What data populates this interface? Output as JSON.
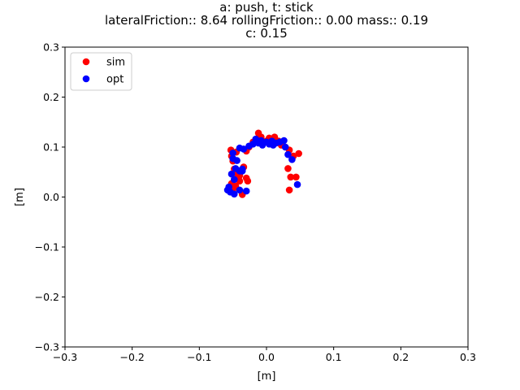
{
  "chart_data": {
    "type": "scatter",
    "title_lines": [
      "a: push, t: stick",
      "lateralFriction:: 8.64 rollingFriction:: 0.00 mass:: 0.19",
      "c: 0.15"
    ],
    "xlabel": "[m]",
    "ylabel": "[m]",
    "xlim": [
      -0.3,
      0.3
    ],
    "ylim": [
      -0.3,
      0.3
    ],
    "xticks": [
      "−0.3",
      "−0.2",
      "−0.1",
      "0.0",
      "0.1",
      "0.2",
      "0.3"
    ],
    "yticks": [
      "−0.3",
      "−0.2",
      "−0.1",
      "0.0",
      "0.1",
      "0.2",
      "0.3"
    ],
    "xtick_values": [
      -0.3,
      -0.2,
      -0.1,
      0.0,
      0.1,
      0.2,
      0.3
    ],
    "ytick_values": [
      -0.3,
      -0.2,
      -0.1,
      0.0,
      0.1,
      0.2,
      0.3
    ],
    "grid": false,
    "legend_position": "upper-left",
    "series": [
      {
        "name": "sim",
        "color": "#ff0000",
        "points": [
          [
            -0.053,
            0.094
          ],
          [
            -0.045,
            0.09
          ],
          [
            -0.03,
            0.092
          ],
          [
            -0.026,
            0.1
          ],
          [
            -0.02,
            0.11
          ],
          [
            -0.012,
            0.128
          ],
          [
            -0.008,
            0.12
          ],
          [
            0.0,
            0.112
          ],
          [
            0.004,
            0.118
          ],
          [
            0.012,
            0.12
          ],
          [
            0.018,
            0.112
          ],
          [
            0.022,
            0.104
          ],
          [
            0.028,
            0.1
          ],
          [
            0.034,
            0.094
          ],
          [
            0.04,
            0.082
          ],
          [
            0.048,
            0.087
          ],
          [
            0.032,
            0.057
          ],
          [
            0.036,
            0.04
          ],
          [
            0.044,
            0.04
          ],
          [
            0.034,
            0.014
          ],
          [
            -0.052,
            0.082
          ],
          [
            -0.05,
            0.072
          ],
          [
            -0.048,
            0.056
          ],
          [
            -0.044,
            0.047
          ],
          [
            -0.04,
            0.043
          ],
          [
            -0.034,
            0.06
          ],
          [
            -0.03,
            0.038
          ],
          [
            -0.028,
            0.032
          ],
          [
            -0.04,
            0.032
          ],
          [
            -0.052,
            0.027
          ],
          [
            -0.046,
            0.022
          ],
          [
            -0.036,
            0.005
          ],
          [
            -0.05,
            0.015
          ]
        ]
      },
      {
        "name": "opt",
        "color": "#0000ff",
        "points": [
          [
            -0.05,
            0.077
          ],
          [
            -0.05,
            0.088
          ],
          [
            -0.04,
            0.098
          ],
          [
            -0.034,
            0.096
          ],
          [
            -0.026,
            0.102
          ],
          [
            -0.02,
            0.106
          ],
          [
            -0.016,
            0.116
          ],
          [
            -0.012,
            0.108
          ],
          [
            -0.008,
            0.113
          ],
          [
            -0.006,
            0.104
          ],
          [
            0.0,
            0.11
          ],
          [
            0.004,
            0.106
          ],
          [
            0.008,
            0.112
          ],
          [
            0.01,
            0.104
          ],
          [
            0.014,
            0.108
          ],
          [
            0.02,
            0.11
          ],
          [
            0.026,
            0.113
          ],
          [
            0.028,
            0.1
          ],
          [
            0.032,
            0.085
          ],
          [
            0.038,
            0.075
          ],
          [
            0.046,
            0.025
          ],
          [
            -0.044,
            0.073
          ],
          [
            -0.046,
            0.057
          ],
          [
            -0.04,
            0.052
          ],
          [
            -0.036,
            0.056
          ],
          [
            -0.052,
            0.046
          ],
          [
            -0.048,
            0.035
          ],
          [
            -0.056,
            0.02
          ],
          [
            -0.058,
            0.014
          ],
          [
            -0.054,
            0.01
          ],
          [
            -0.048,
            0.006
          ],
          [
            -0.04,
            0.014
          ],
          [
            -0.03,
            0.012
          ],
          [
            -0.036,
            0.052
          ]
        ]
      }
    ]
  }
}
